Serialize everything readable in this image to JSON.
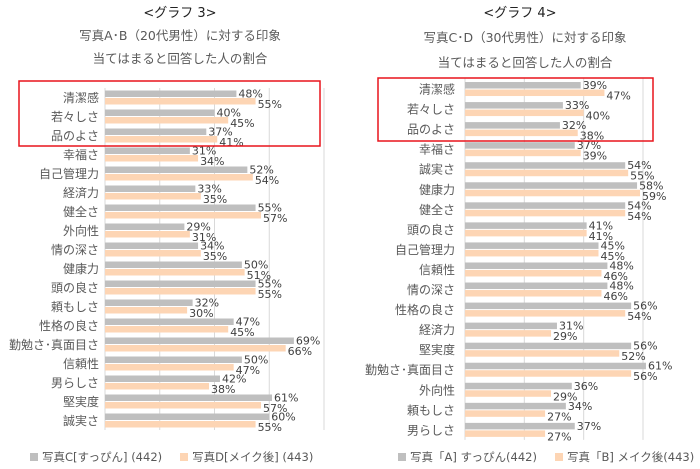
{
  "colors": {
    "series1": "#bfbfbf",
    "series2": "#fdd5b4",
    "highlight_box": "#e8141c",
    "grid": "#d9d9d9"
  },
  "chart_data": [
    {
      "type": "bar",
      "orientation": "horizontal",
      "heading": "<グラフ 3>",
      "title": "写真A･B（20代男性）に対する印象",
      "subtitle": "当てはまると回答した人の割合",
      "categories": [
        "清潔感",
        "若々しさ",
        "品のよさ",
        "幸福さ",
        "自己管理力",
        "経済力",
        "健全さ",
        "外向性",
        "情の深さ",
        "健康力",
        "頭の良さ",
        "頼もしさ",
        "性格の良さ",
        "勤勉さ･真面目さ",
        "信頼性",
        "男らしさ",
        "堅実度",
        "誠実さ"
      ],
      "series": [
        {
          "name": "写真C[すっぴん] (442)",
          "values": [
            48,
            40,
            37,
            31,
            52,
            33,
            55,
            29,
            34,
            50,
            55,
            32,
            47,
            69,
            50,
            42,
            61,
            60
          ]
        },
        {
          "name": "写真D[メイク後] (443)",
          "values": [
            55,
            45,
            41,
            34,
            54,
            35,
            57,
            31,
            35,
            51,
            55,
            30,
            45,
            66,
            47,
            38,
            57,
            55
          ]
        }
      ],
      "value_suffix": "%",
      "xlim": [
        0,
        80
      ],
      "grid": true,
      "legend": "bottom",
      "highlighted_categories": [
        "清潔感",
        "若々しさ",
        "品のよさ"
      ]
    },
    {
      "type": "bar",
      "orientation": "horizontal",
      "heading": "<グラフ 4>",
      "title": "写真C･D（30代男性）に対する印象",
      "subtitle": "当てはまると回答した人の割合",
      "categories": [
        "清潔感",
        "若々しさ",
        "品のよさ",
        "幸福さ",
        "誠実さ",
        "健康力",
        "健全さ",
        "頭の良さ",
        "自己管理力",
        "信頼性",
        "情の深さ",
        "性格の良さ",
        "経済力",
        "堅実度",
        "勤勉さ･真面目さ",
        "外向性",
        "頼もしさ",
        "男らしさ"
      ],
      "series": [
        {
          "name": "写真「A] すっぴん(442)",
          "values": [
            39,
            33,
            32,
            37,
            54,
            58,
            54,
            41,
            45,
            48,
            48,
            56,
            31,
            56,
            61,
            36,
            34,
            37
          ]
        },
        {
          "name": "写真「B] メイク後(443)",
          "values": [
            47,
            40,
            38,
            39,
            55,
            59,
            54,
            41,
            45,
            46,
            46,
            54,
            29,
            52,
            56,
            29,
            27,
            27
          ]
        }
      ],
      "value_suffix": "%",
      "xlim": [
        0,
        60
      ],
      "grid": true,
      "legend": "bottom",
      "highlighted_categories": [
        "清潔感",
        "若々しさ",
        "品のよさ"
      ]
    }
  ]
}
